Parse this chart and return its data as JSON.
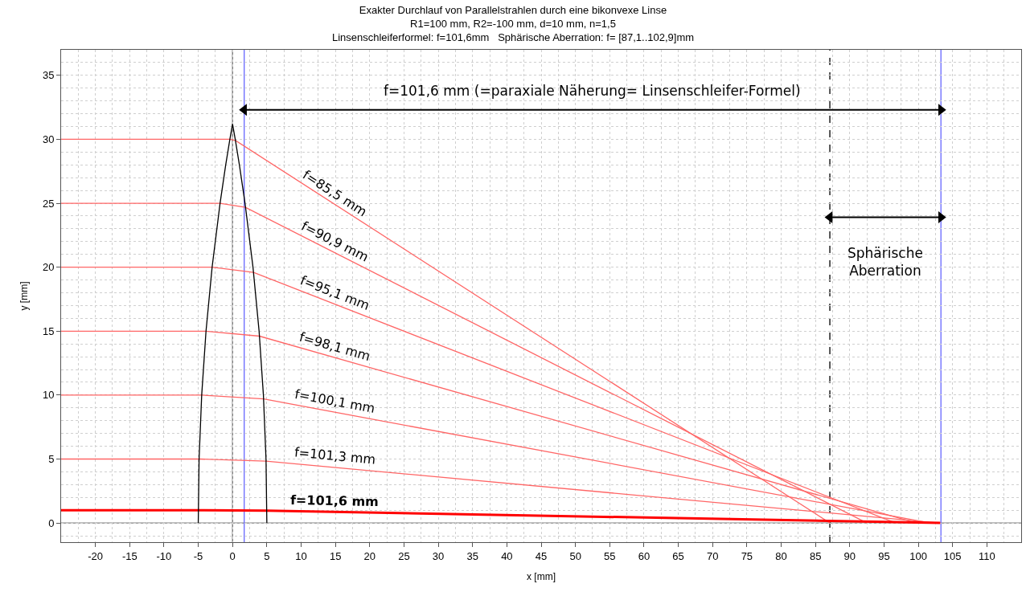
{
  "chart_data": {
    "type": "line",
    "title": "Exakter Durchlauf von Parallelstrahlen durch eine bikonvexe Linse\nR1=100 mm, R2=-100 mm, d=10 mm, n=1,5\nLinsenschleiferformel: f=101,6mm   Sphärische Aberration: f= [87,1..102,9]mm",
    "xlabel": "x [mm]",
    "ylabel": "y [mm]",
    "xlim": [
      -25,
      115
    ],
    "ylim": [
      -1.5,
      37
    ],
    "xticks": [
      -20,
      -15,
      -10,
      -5,
      0,
      5,
      10,
      15,
      20,
      25,
      30,
      35,
      40,
      45,
      50,
      55,
      60,
      65,
      70,
      75,
      80,
      85,
      90,
      95,
      100,
      105,
      110
    ],
    "yticks": [
      0,
      5,
      10,
      15,
      20,
      25,
      30,
      35
    ],
    "grid": true,
    "line_style": "solid",
    "series": [
      {
        "color": "#ff6666",
        "x": [
          -25,
          -0.39,
          0.43,
          87.1
        ],
        "values": [
          30,
          30,
          29.91,
          0
        ]
      },
      {
        "color": "#ff6666",
        "x": [
          -25,
          -1.82,
          1.88,
          92.5
        ],
        "values": [
          25,
          25,
          24.68,
          0
        ]
      },
      {
        "color": "#ff6666",
        "x": [
          -25,
          -2.98,
          3.06,
          96.7
        ],
        "values": [
          20,
          20,
          19.59,
          0
        ]
      },
      {
        "color": "#ff6666",
        "x": [
          -25,
          -3.87,
          3.93,
          99.7
        ],
        "values": [
          15,
          15,
          14.61,
          0
        ]
      },
      {
        "color": "#ff6666",
        "x": [
          -25,
          -4.5,
          4.53,
          101.7
        ],
        "values": [
          10,
          10,
          9.7,
          0
        ]
      },
      {
        "color": "#ff6666",
        "x": [
          -25,
          -4.87,
          4.88,
          102.9
        ],
        "values": [
          5,
          5,
          4.84,
          0
        ]
      },
      {
        "color": "#ff0000",
        "x": [
          -25,
          -5.0,
          5.0,
          103.2
        ],
        "values": [
          1,
          1,
          0.97,
          0
        ]
      },
      {
        "color": "#000000",
        "x": [
          -5,
          -4.88,
          -4.5,
          -3.87,
          -2.98,
          -1.82,
          -1.0,
          -0.39,
          0,
          0.39,
          1.0,
          1.82,
          2.98,
          3.87,
          4.5,
          4.88,
          5
        ],
        "values": [
          0,
          5,
          10,
          15,
          20,
          25,
          28,
          30,
          31.2,
          30,
          28,
          25,
          20,
          15,
          10,
          5,
          0
        ]
      },
      {
        "color": "#000000",
        "marker": "triangle",
        "x": [
          1.7,
          103.3
        ],
        "values": [
          32.3,
          32.3
        ]
      },
      {
        "color": "#000000",
        "marker": "triangle",
        "x": [
          87.1,
          103.3
        ],
        "values": [
          23.9,
          23.9
        ]
      }
    ],
    "ref_lines": [
      {
        "axis": "y",
        "value": 0,
        "color": "#808080",
        "line_style": "solid"
      },
      {
        "axis": "x",
        "value": 0,
        "color": "#707070",
        "line_style": "solid"
      },
      {
        "axis": "x",
        "value": 1.7,
        "color": "#6666ff",
        "line_style": "solid"
      },
      {
        "axis": "x",
        "value": 103.3,
        "color": "#6666ff",
        "line_style": "solid"
      },
      {
        "axis": "x",
        "value": 87.1,
        "color": "#000000",
        "line_style": "dashed"
      }
    ],
    "annotations": [
      "f=101,6 mm (=paraxiale Näherung= Linsenschleifer-Formel)",
      "Sphärische\nAberration",
      "f=85,5 mm",
      "f=90,9 mm",
      "f=95,1 mm",
      "f=98,1 mm",
      "f=100,1 mm",
      "f=101,3 mm",
      "f=101,6 mm"
    ]
  }
}
